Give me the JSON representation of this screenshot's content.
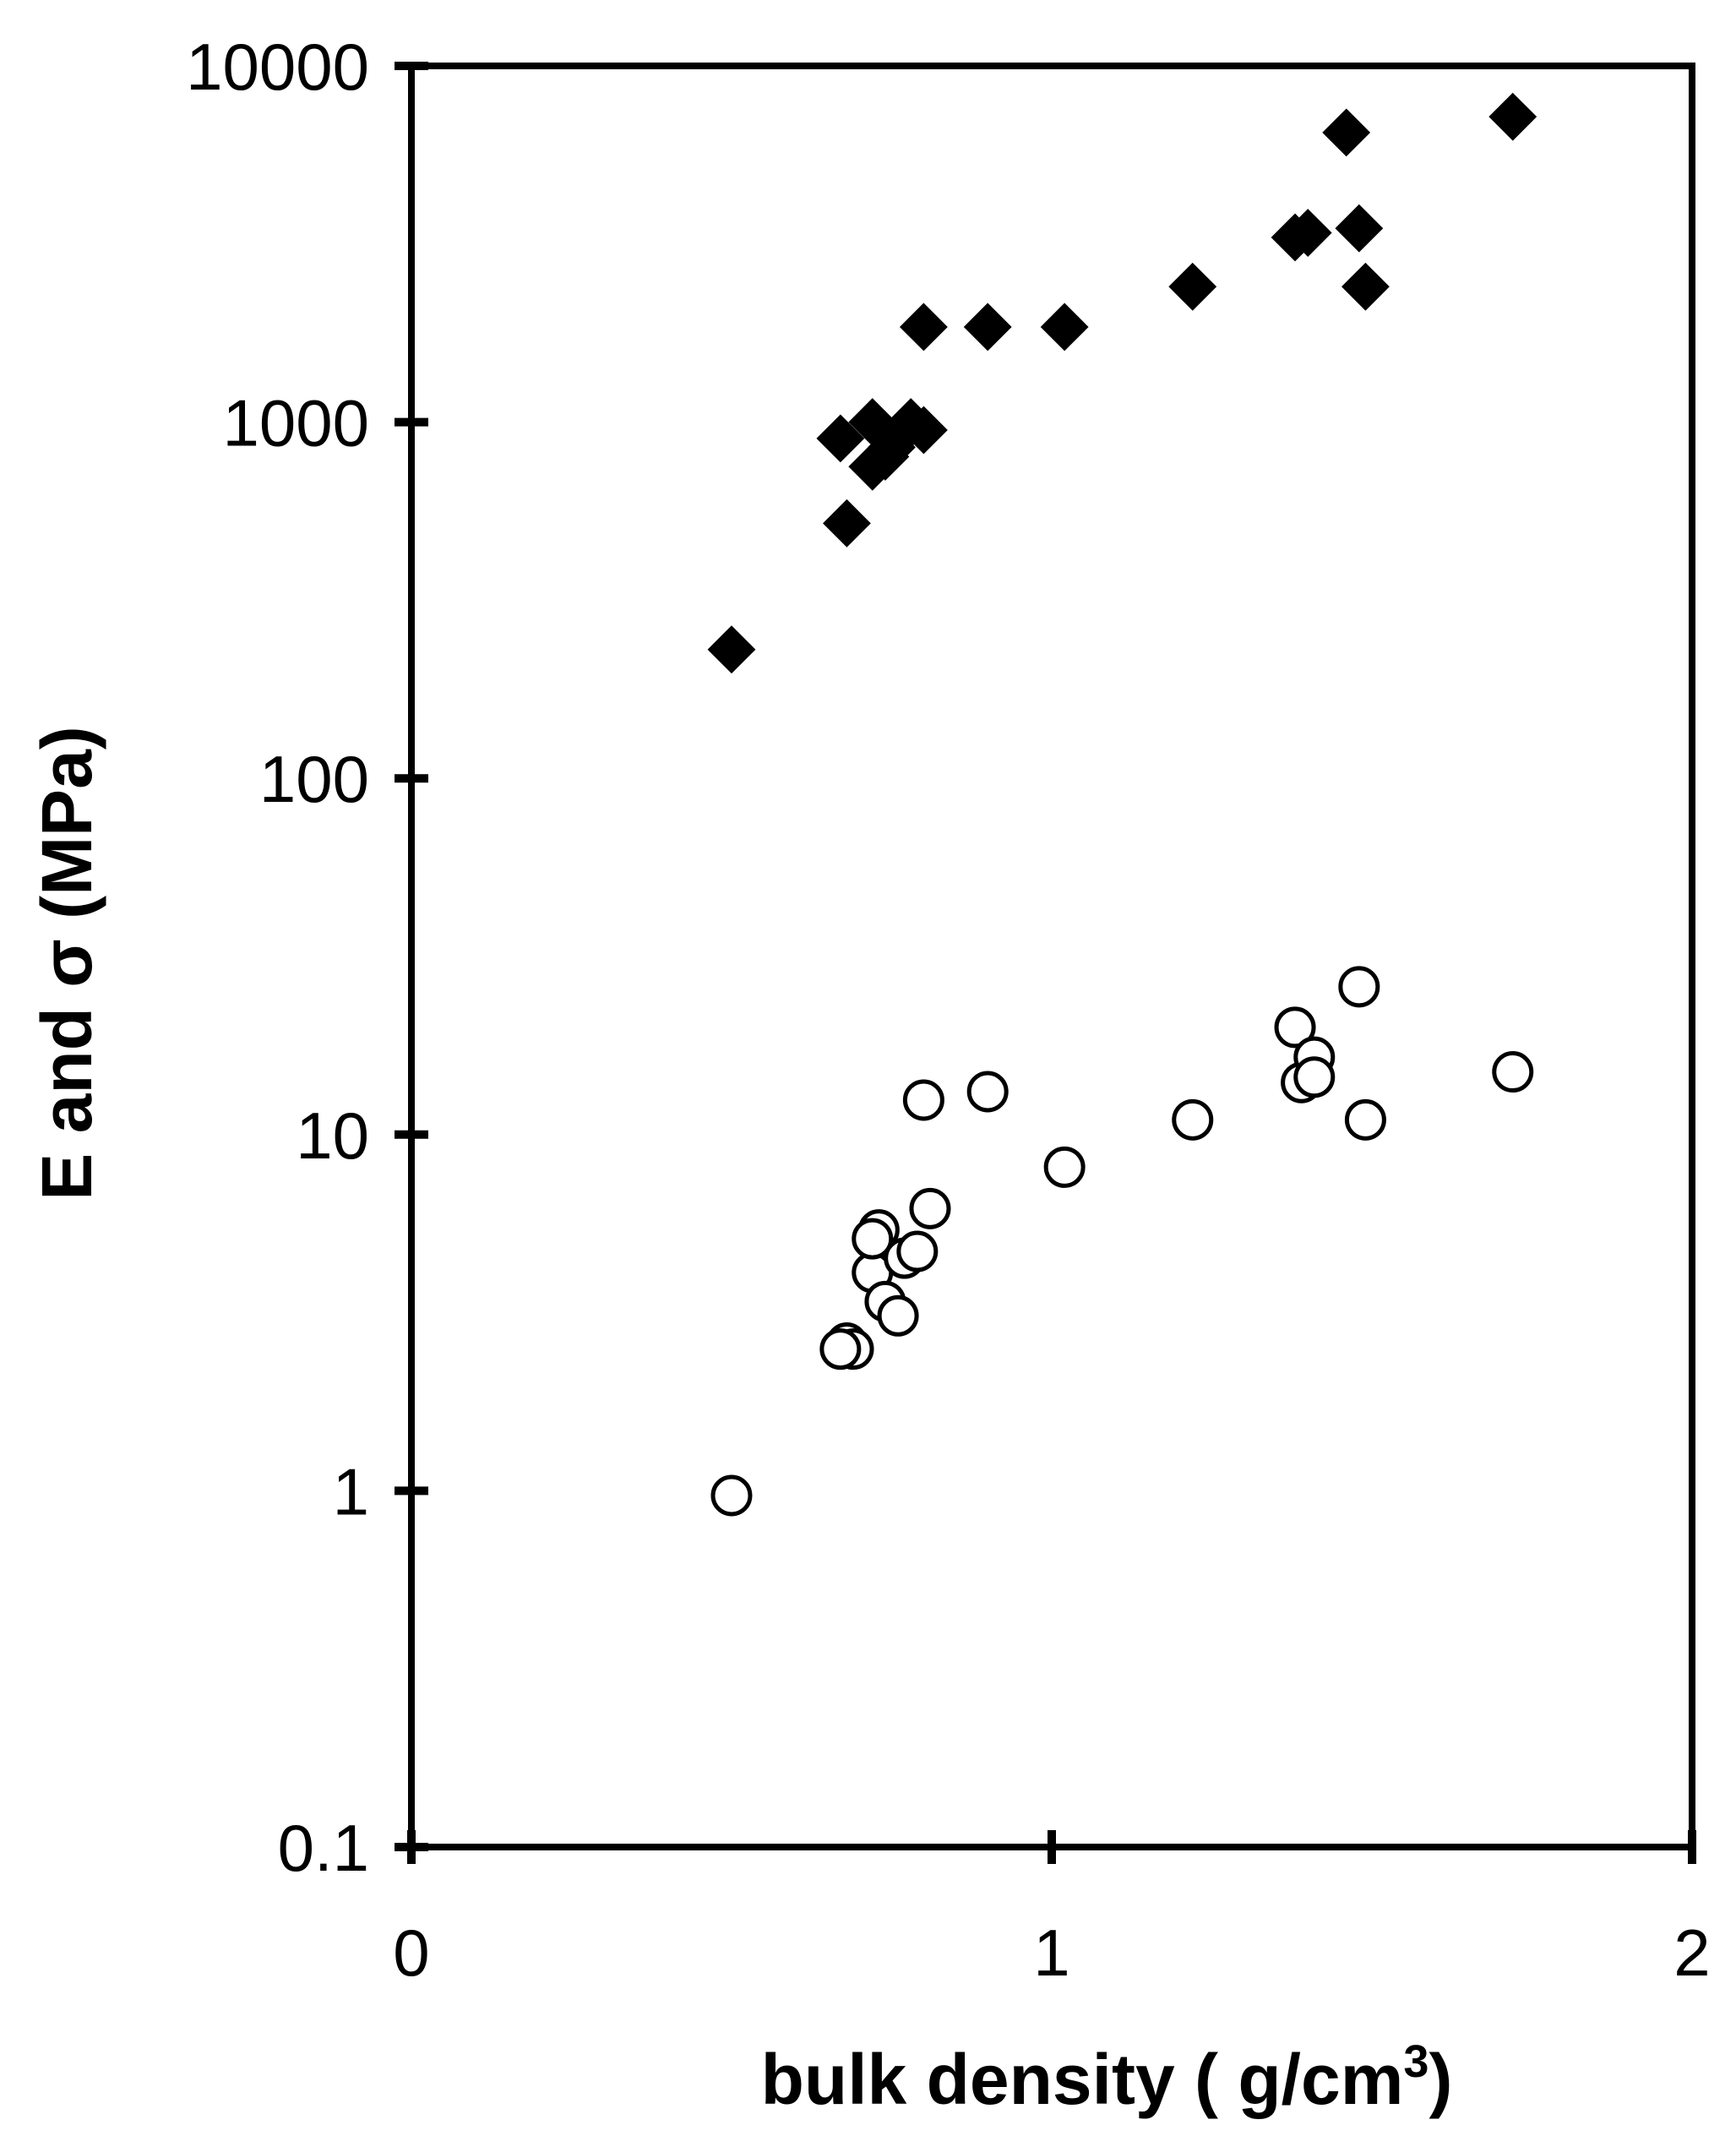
{
  "chart_data": {
    "type": "scatter",
    "title": "",
    "xlabel": "bulk density ( g/cm",
    "xlabel_sup": "3",
    "xlabel_tail": ")",
    "ylabel": "E and σ (MPa)",
    "xlim": [
      0,
      2
    ],
    "ylim": [
      0.1,
      10000
    ],
    "y_scale": "log",
    "grid": false,
    "legend": "none",
    "x_ticks": [
      {
        "value": 0,
        "label": "0"
      },
      {
        "value": 1,
        "label": "1"
      },
      {
        "value": 2,
        "label": "2"
      }
    ],
    "y_ticks": [
      {
        "value": 0.1,
        "label": "0.1"
      },
      {
        "value": 1,
        "label": "1"
      },
      {
        "value": 10,
        "label": "10"
      },
      {
        "value": 100,
        "label": "100"
      },
      {
        "value": 1000,
        "label": "1000"
      },
      {
        "value": 10000,
        "label": "10000"
      }
    ],
    "series": [
      {
        "marker": "filled-diamond",
        "color": "#000000",
        "points": [
          [
            0.5,
            230
          ],
          [
            0.68,
            520
          ],
          [
            0.67,
            900
          ],
          [
            0.72,
            1000
          ],
          [
            0.72,
            750
          ],
          [
            0.74,
            800
          ],
          [
            0.75,
            850
          ],
          [
            0.77,
            950
          ],
          [
            0.78,
            1000
          ],
          [
            0.8,
            950
          ],
          [
            0.8,
            1850
          ],
          [
            0.9,
            1850
          ],
          [
            1.02,
            1850
          ],
          [
            1.22,
            2400
          ],
          [
            1.38,
            3300
          ],
          [
            1.4,
            3400
          ],
          [
            1.46,
            6500
          ],
          [
            1.48,
            3500
          ],
          [
            1.49,
            2400
          ],
          [
            1.72,
            7200
          ]
        ]
      },
      {
        "marker": "open-circle",
        "color": "#000000",
        "points": [
          [
            0.5,
            0.97
          ],
          [
            0.68,
            2.6
          ],
          [
            0.69,
            2.5
          ],
          [
            0.67,
            2.5
          ],
          [
            0.72,
            4.1
          ],
          [
            0.73,
            5.4
          ],
          [
            0.72,
            5.1
          ],
          [
            0.74,
            3.4
          ],
          [
            0.76,
            3.1
          ],
          [
            0.77,
            4.5
          ],
          [
            0.79,
            4.7
          ],
          [
            0.8,
            12.5
          ],
          [
            0.81,
            6.2
          ],
          [
            0.9,
            13.2
          ],
          [
            1.02,
            8.1
          ],
          [
            1.22,
            11
          ],
          [
            1.38,
            20
          ],
          [
            1.39,
            14
          ],
          [
            1.41,
            16.5
          ],
          [
            1.41,
            14.5
          ],
          [
            1.48,
            26
          ],
          [
            1.49,
            11
          ],
          [
            1.72,
            15
          ]
        ]
      }
    ]
  }
}
